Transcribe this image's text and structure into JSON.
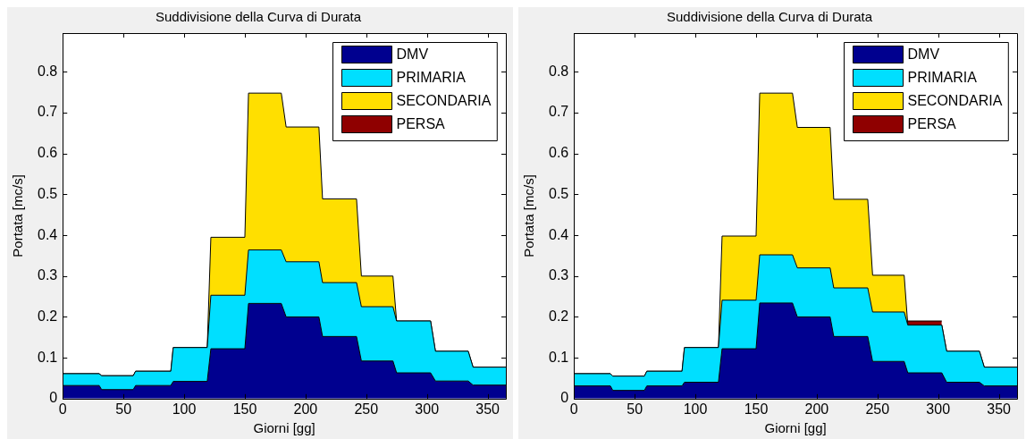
{
  "chart_data": [
    {
      "type": "area",
      "title": "Suddivisione della Curva di Durata",
      "xlabel": "Giorni [gg]",
      "ylabel": "Portata [mc/s]",
      "stacked": true,
      "legend": "top right",
      "x": [
        0,
        30,
        32,
        58,
        60,
        89,
        91,
        119,
        122,
        150,
        153,
        180,
        184,
        211,
        214,
        242,
        246,
        272,
        275,
        303,
        307,
        334,
        338,
        365
      ],
      "series": [
        {
          "name": "DMV",
          "color": "#00008f",
          "values": [
            0.032,
            0.032,
            0.022,
            0.022,
            0.032,
            0.032,
            0.042,
            0.042,
            0.122,
            0.122,
            0.233,
            0.233,
            0.2,
            0.2,
            0.152,
            0.152,
            0.092,
            0.092,
            0.063,
            0.063,
            0.043,
            0.043,
            0.033,
            0.033
          ]
        },
        {
          "name": "PRIMARIA",
          "color": "#00dfff",
          "values": [
            0.029,
            0.029,
            0.034,
            0.034,
            0.035,
            0.035,
            0.083,
            0.083,
            0.131,
            0.131,
            0.131,
            0.131,
            0.135,
            0.135,
            0.132,
            0.132,
            0.133,
            0.133,
            0.127,
            0.127,
            0.073,
            0.073,
            0.044,
            0.044
          ]
        },
        {
          "name": "SECONDARIA",
          "color": "#ffdf00",
          "values": [
            0,
            0,
            0,
            0,
            0,
            0,
            0,
            0,
            0.142,
            0.142,
            0.384,
            0.384,
            0.33,
            0.33,
            0.205,
            0.205,
            0.075,
            0.075,
            0,
            0,
            0,
            0,
            0,
            0
          ]
        },
        {
          "name": "PERSA",
          "color": "#8f0000",
          "values": [
            null,
            null,
            null,
            null,
            null,
            null,
            null,
            null,
            null,
            null,
            null,
            null,
            null,
            null,
            null,
            null,
            null,
            null,
            null,
            null,
            null,
            null,
            null,
            null
          ]
        }
      ],
      "xlim": [
        0,
        365
      ],
      "ylim": [
        0,
        0.895
      ],
      "xticks": [
        0,
        50,
        100,
        150,
        200,
        250,
        300,
        350
      ],
      "yticks": [
        0,
        0.1,
        0.2,
        0.3,
        0.4,
        0.5,
        0.6,
        0.7,
        0.8
      ]
    },
    {
      "type": "area",
      "title": "Suddivisione della Curva di Durata",
      "xlabel": "Giorni [gg]",
      "ylabel": "Portata [mc/s]",
      "stacked": true,
      "legend": "top right",
      "x": [
        0,
        30,
        32,
        58,
        60,
        89,
        91,
        119,
        122,
        150,
        153,
        180,
        184,
        211,
        214,
        242,
        246,
        272,
        275,
        303,
        307,
        334,
        338,
        365
      ],
      "series": [
        {
          "name": "DMV",
          "color": "#00008f",
          "values": [
            0.031,
            0.031,
            0.02,
            0.02,
            0.031,
            0.031,
            0.04,
            0.04,
            0.122,
            0.122,
            0.234,
            0.234,
            0.2,
            0.2,
            0.152,
            0.152,
            0.091,
            0.091,
            0.063,
            0.063,
            0.04,
            0.04,
            0.031,
            0.031
          ]
        },
        {
          "name": "PRIMARIA",
          "color": "#00dfff",
          "values": [
            0.03,
            0.03,
            0.035,
            0.035,
            0.036,
            0.036,
            0.085,
            0.085,
            0.119,
            0.119,
            0.118,
            0.118,
            0.12,
            0.12,
            0.119,
            0.119,
            0.121,
            0.121,
            0.117,
            0.117,
            0.076,
            0.076,
            0.046,
            0.046
          ]
        },
        {
          "name": "SECONDARIA",
          "color": "#ffdf00",
          "values": [
            0,
            0,
            0,
            0,
            0,
            0,
            0,
            0,
            0.157,
            0.157,
            0.396,
            0.396,
            0.344,
            0.344,
            0.217,
            0.217,
            0.09,
            0.09,
            0,
            0,
            0,
            0,
            0,
            0
          ]
        },
        {
          "name": "PERSA",
          "color": "#8f0000",
          "values": [
            null,
            null,
            null,
            null,
            null,
            null,
            null,
            null,
            null,
            null,
            null,
            null,
            null,
            null,
            null,
            null,
            null,
            null,
            0.01,
            0.01,
            null,
            null,
            null,
            null
          ]
        }
      ],
      "xlim": [
        0,
        365
      ],
      "ylim": [
        0,
        0.895
      ],
      "xticks": [
        0,
        50,
        100,
        150,
        200,
        250,
        300,
        350
      ],
      "yticks": [
        0,
        0.1,
        0.2,
        0.3,
        0.4,
        0.5,
        0.6,
        0.7,
        0.8
      ]
    }
  ]
}
